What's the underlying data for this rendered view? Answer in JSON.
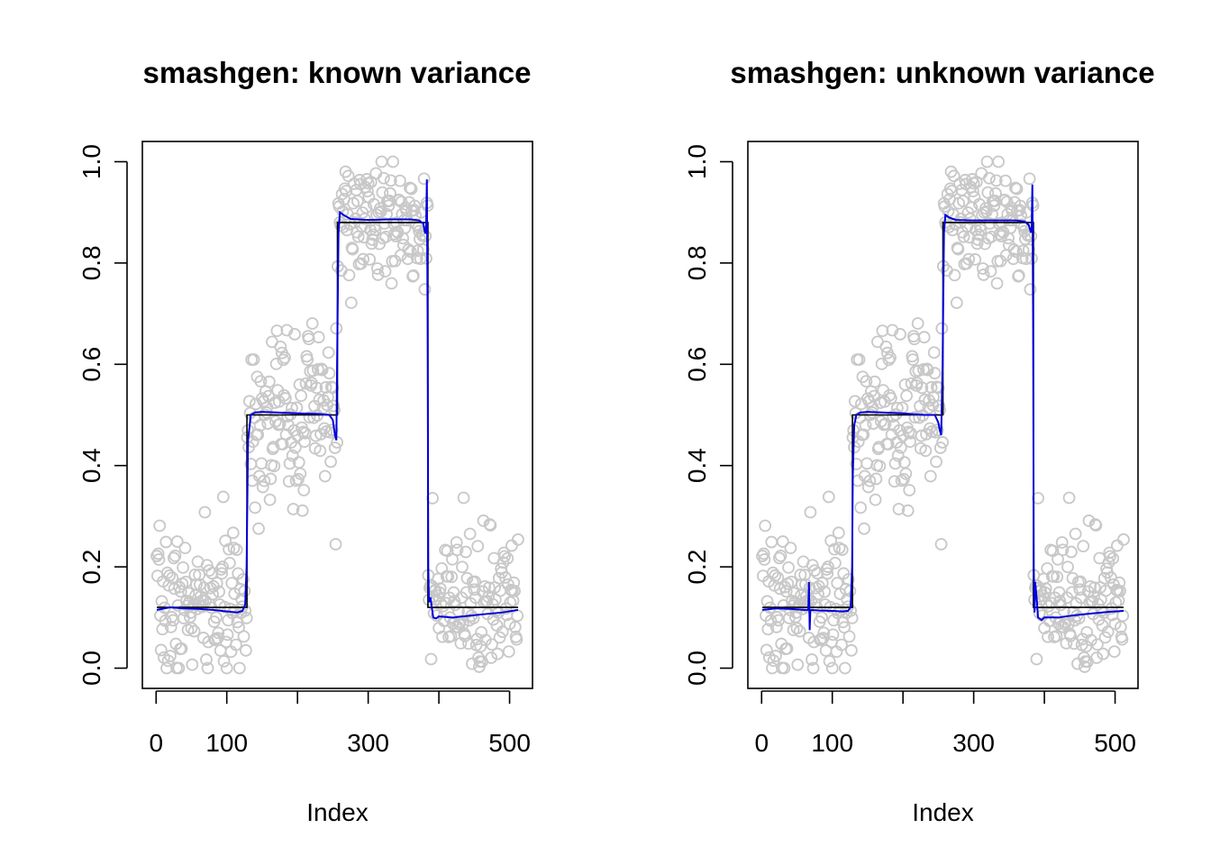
{
  "colors": {
    "points": "#c8c8c8",
    "truth": "#000000",
    "estimate": "#0000dd",
    "frame": "#000000"
  },
  "chart_data": [
    {
      "type": "scatter",
      "title": "smashgen: known variance",
      "xlabel": "Index",
      "ylabel": "",
      "xlim": [
        1,
        512
      ],
      "ylim": [
        0,
        1
      ],
      "xticks": [
        0,
        100,
        200,
        300,
        400,
        500
      ],
      "xtick_labels": [
        "0",
        "100",
        "",
        "300",
        "",
        "500"
      ],
      "yticks": [
        0.0,
        0.2,
        0.4,
        0.6,
        0.8,
        1.0
      ],
      "ytick_labels": [
        "0.0",
        "0.2",
        "0.4",
        "0.6",
        "0.8",
        "1.0"
      ],
      "grid": false,
      "legend": "none",
      "series": [
        {
          "kind": "points",
          "description_seed": 7,
          "segments": [
            {
              "x": [
                1,
                128
              ],
              "mean": 0.12,
              "sd": 0.07
            },
            {
              "x": [
                129,
                256
              ],
              "mean": 0.5,
              "sd": 0.09
            },
            {
              "x": [
                257,
                384
              ],
              "mean": 0.88,
              "sd": 0.06
            },
            {
              "x": [
                385,
                512
              ],
              "mean": 0.12,
              "sd": 0.07
            }
          ]
        },
        {
          "kind": "truth",
          "steps": [
            {
              "x": [
                1,
                128
              ],
              "y": 0.12
            },
            {
              "x": [
                129,
                256
              ],
              "y": 0.5
            },
            {
              "x": [
                257,
                384
              ],
              "y": 0.88
            },
            {
              "x": [
                385,
                512
              ],
              "y": 0.12
            }
          ]
        },
        {
          "kind": "estimate",
          "points": [
            [
              1,
              0.115
            ],
            [
              20,
              0.12
            ],
            [
              40,
              0.118
            ],
            [
              60,
              0.117
            ],
            [
              80,
              0.115
            ],
            [
              100,
              0.112
            ],
            [
              115,
              0.11
            ],
            [
              122,
              0.113
            ],
            [
              126,
              0.125
            ],
            [
              128,
              0.2
            ],
            [
              130,
              0.45
            ],
            [
              134,
              0.5
            ],
            [
              140,
              0.505
            ],
            [
              150,
              0.506
            ],
            [
              170,
              0.505
            ],
            [
              200,
              0.503
            ],
            [
              230,
              0.502
            ],
            [
              245,
              0.5
            ],
            [
              250,
              0.49
            ],
            [
              253,
              0.46
            ],
            [
              255,
              0.45
            ],
            [
              256,
              0.6
            ],
            [
              258,
              0.86
            ],
            [
              260,
              0.9
            ],
            [
              265,
              0.895
            ],
            [
              275,
              0.887
            ],
            [
              300,
              0.885
            ],
            [
              330,
              0.886
            ],
            [
              360,
              0.886
            ],
            [
              372,
              0.884
            ],
            [
              378,
              0.878
            ],
            [
              380,
              0.862
            ],
            [
              381,
              0.858
            ],
            [
              382,
              0.875
            ],
            [
              383,
              0.965
            ],
            [
              384,
              0.7
            ],
            [
              385,
              0.2
            ],
            [
              386,
              0.13
            ],
            [
              388,
              0.14
            ],
            [
              390,
              0.12
            ],
            [
              392,
              0.1
            ],
            [
              396,
              0.098
            ],
            [
              400,
              0.102
            ],
            [
              420,
              0.1
            ],
            [
              440,
              0.103
            ],
            [
              460,
              0.106
            ],
            [
              490,
              0.11
            ],
            [
              512,
              0.115
            ]
          ]
        }
      ]
    },
    {
      "type": "scatter",
      "title": "smashgen: unknown variance",
      "xlabel": "Index",
      "ylabel": "",
      "xlim": [
        1,
        512
      ],
      "ylim": [
        0,
        1
      ],
      "xticks": [
        0,
        100,
        200,
        300,
        400,
        500
      ],
      "xtick_labels": [
        "0",
        "100",
        "",
        "300",
        "",
        "500"
      ],
      "yticks": [
        0.0,
        0.2,
        0.4,
        0.6,
        0.8,
        1.0
      ],
      "ytick_labels": [
        "0.0",
        "0.2",
        "0.4",
        "0.6",
        "0.8",
        "1.0"
      ],
      "grid": false,
      "legend": "none",
      "series": [
        {
          "kind": "points",
          "description_seed": 7,
          "segments": [
            {
              "x": [
                1,
                128
              ],
              "mean": 0.12,
              "sd": 0.07
            },
            {
              "x": [
                129,
                256
              ],
              "mean": 0.5,
              "sd": 0.09
            },
            {
              "x": [
                257,
                384
              ],
              "mean": 0.88,
              "sd": 0.06
            },
            {
              "x": [
                385,
                512
              ],
              "mean": 0.12,
              "sd": 0.07
            }
          ]
        },
        {
          "kind": "truth",
          "steps": [
            {
              "x": [
                1,
                128
              ],
              "y": 0.12
            },
            {
              "x": [
                129,
                256
              ],
              "y": 0.5
            },
            {
              "x": [
                257,
                384
              ],
              "y": 0.88
            },
            {
              "x": [
                385,
                512
              ],
              "y": 0.12
            }
          ]
        },
        {
          "kind": "estimate",
          "points": [
            [
              1,
              0.115
            ],
            [
              20,
              0.118
            ],
            [
              40,
              0.117
            ],
            [
              60,
              0.115
            ],
            [
              66,
              0.115
            ],
            [
              67,
              0.17
            ],
            [
              68,
              0.075
            ],
            [
              69,
              0.115
            ],
            [
              80,
              0.114
            ],
            [
              100,
              0.113
            ],
            [
              115,
              0.112
            ],
            [
              122,
              0.113
            ],
            [
              126,
              0.12
            ],
            [
              128,
              0.2
            ],
            [
              129,
              0.38
            ],
            [
              131,
              0.48
            ],
            [
              134,
              0.5
            ],
            [
              140,
              0.505
            ],
            [
              150,
              0.506
            ],
            [
              170,
              0.505
            ],
            [
              200,
              0.503
            ],
            [
              230,
              0.5
            ],
            [
              245,
              0.5
            ],
            [
              250,
              0.485
            ],
            [
              252,
              0.47
            ],
            [
              254,
              0.46
            ],
            [
              256,
              0.6
            ],
            [
              258,
              0.86
            ],
            [
              260,
              0.895
            ],
            [
              265,
              0.89
            ],
            [
              275,
              0.885
            ],
            [
              300,
              0.884
            ],
            [
              330,
              0.884
            ],
            [
              360,
              0.884
            ],
            [
              372,
              0.882
            ],
            [
              378,
              0.875
            ],
            [
              380,
              0.865
            ],
            [
              381,
              0.86
            ],
            [
              382,
              0.87
            ],
            [
              383,
              0.955
            ],
            [
              384,
              0.7
            ],
            [
              385,
              0.2
            ],
            [
              386,
              0.11
            ],
            [
              387,
              0.17
            ],
            [
              389,
              0.14
            ],
            [
              391,
              0.1
            ],
            [
              396,
              0.095
            ],
            [
              400,
              0.1
            ],
            [
              420,
              0.1
            ],
            [
              440,
              0.104
            ],
            [
              460,
              0.107
            ],
            [
              490,
              0.111
            ],
            [
              512,
              0.113
            ]
          ]
        }
      ]
    }
  ]
}
